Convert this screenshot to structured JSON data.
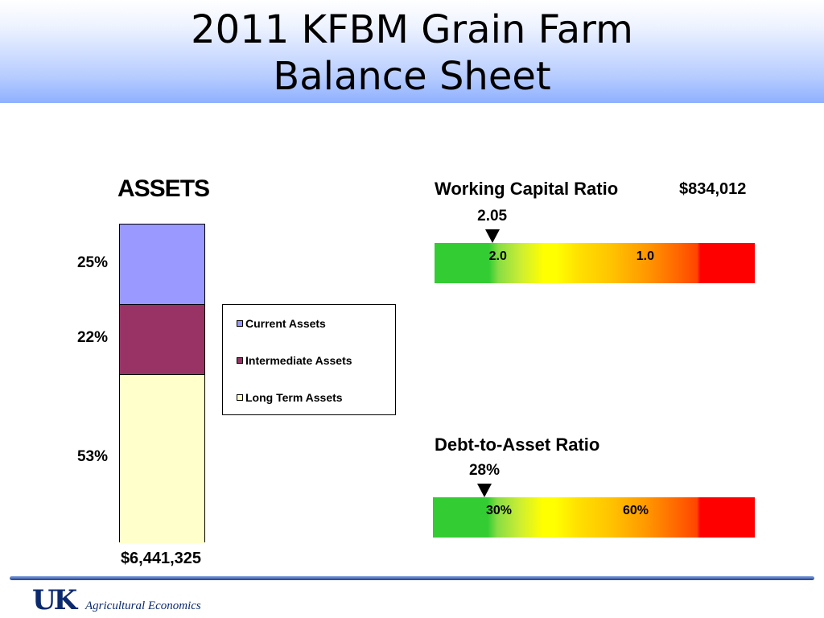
{
  "slide": {
    "title_line1": "2011 KFBM Grain Farm",
    "title_line2": "Balance Sheet"
  },
  "chart_data": [
    {
      "type": "bar",
      "stacked": true,
      "title": "ASSETS",
      "total_label": "$6,441,325",
      "ylim": [
        0,
        100
      ],
      "series": [
        {
          "name": "Current Assets",
          "values": [
            25
          ],
          "label": "25%",
          "color": "#9999ff"
        },
        {
          "name": "Intermediate Assets",
          "values": [
            22
          ],
          "label": "22%",
          "color": "#993366"
        },
        {
          "name": "Long Term Assets",
          "values": [
            53
          ],
          "label": "53%",
          "color": "#ffffcc"
        }
      ],
      "legend_placement": "right"
    },
    {
      "type": "gauge",
      "title": "Working Capital Ratio",
      "amount_label": "$834,012",
      "value": 2.05,
      "value_label": "2.05",
      "scale_position": 0.18,
      "ticks": [
        {
          "label": "2.0",
          "position": 0.17
        },
        {
          "label": "1.0",
          "position": 0.63
        }
      ]
    },
    {
      "type": "gauge",
      "title": "Debt-to-Asset Ratio",
      "value": 28,
      "value_label": "28%",
      "scale_position": 0.16,
      "ticks": [
        {
          "label": "30%",
          "position": 0.165
        },
        {
          "label": "60%",
          "position": 0.59
        }
      ]
    }
  ],
  "footer": {
    "logo": "UK",
    "department": "Agricultural Economics"
  }
}
